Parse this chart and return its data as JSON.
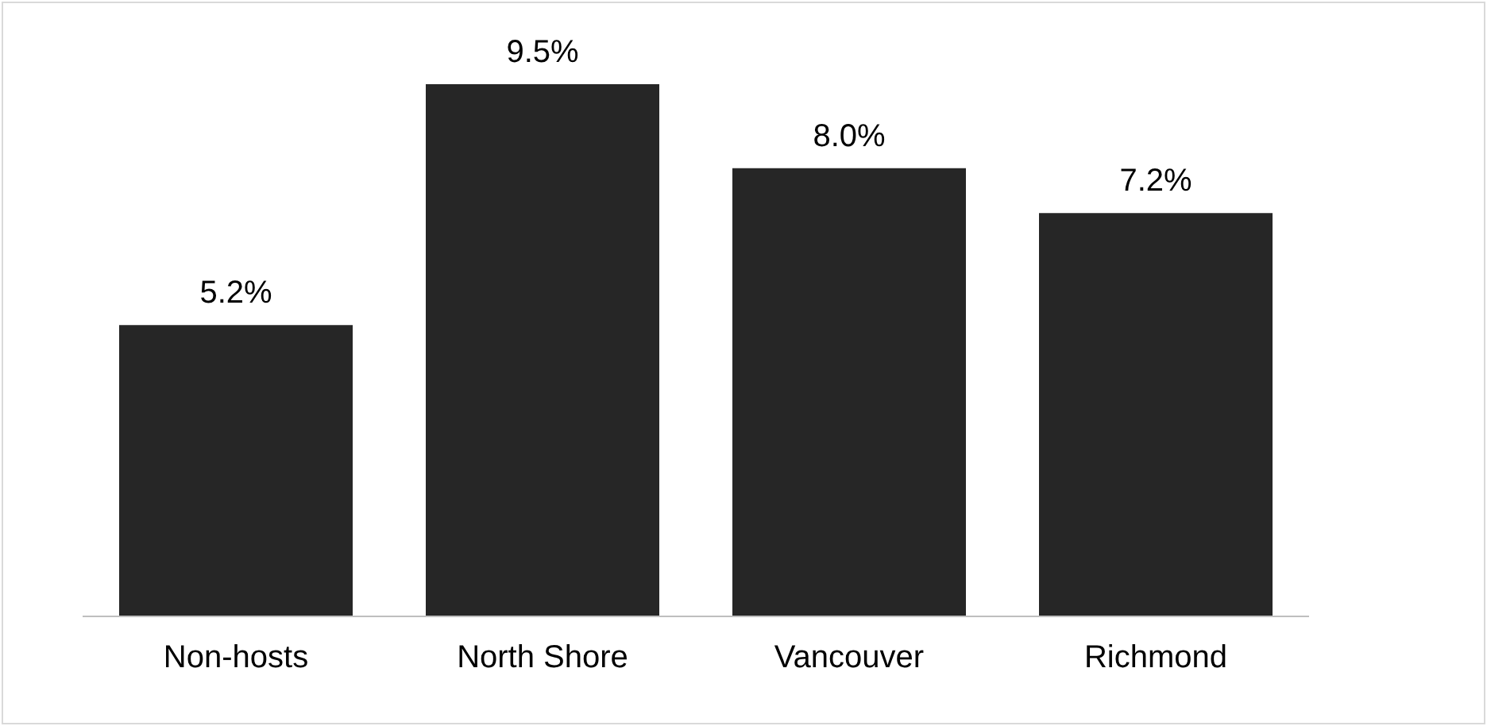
{
  "chart_data": {
    "type": "bar",
    "categories": [
      "Non-hosts",
      "North Shore",
      "Vancouver",
      "Richmond"
    ],
    "values": [
      5.2,
      9.5,
      8.0,
      7.2
    ],
    "value_labels": [
      "5.2%",
      "9.5%",
      "8.0%",
      "7.2%"
    ],
    "color": "#262626",
    "grid": false,
    "legend": false
  }
}
